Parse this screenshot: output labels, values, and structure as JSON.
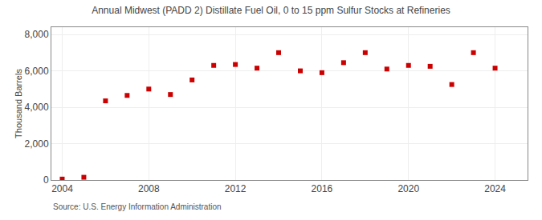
{
  "chart_data": {
    "type": "scatter",
    "title": "Annual Midwest (PADD 2) Distillate Fuel Oil, 0 to 15 ppm Sulfur Stocks at Refineries",
    "y_label": "Thousand Barrels",
    "annotations": [
      "Source: U.S. Energy Information Administration"
    ],
    "x": [
      2004,
      2005,
      2006,
      2007,
      2008,
      2009,
      2010,
      2011,
      2012,
      2013,
      2014,
      2015,
      2016,
      2017,
      2018,
      2019,
      2020,
      2021,
      2022,
      2023,
      2024
    ],
    "values": [
      50,
      150,
      4350,
      4650,
      5000,
      4700,
      5500,
      6300,
      6350,
      6150,
      7000,
      6000,
      5900,
      6450,
      7000,
      6100,
      6300,
      6250,
      5250,
      7000,
      6150
    ],
    "color": "#cc0000",
    "marker": "square",
    "xlim": [
      2003.5,
      2025.5
    ],
    "xticks": [
      2004,
      2008,
      2012,
      2016,
      2020,
      2024
    ],
    "ylim": [
      0,
      8400
    ],
    "yticks": [
      0,
      {
        "value": 2000,
        "label": "2,000"
      },
      {
        "value": 4000,
        "label": "4,000"
      },
      {
        "value": 6000,
        "label": "6,000"
      },
      {
        "value": 8000,
        "label": "8,000"
      }
    ],
    "grid": true
  }
}
